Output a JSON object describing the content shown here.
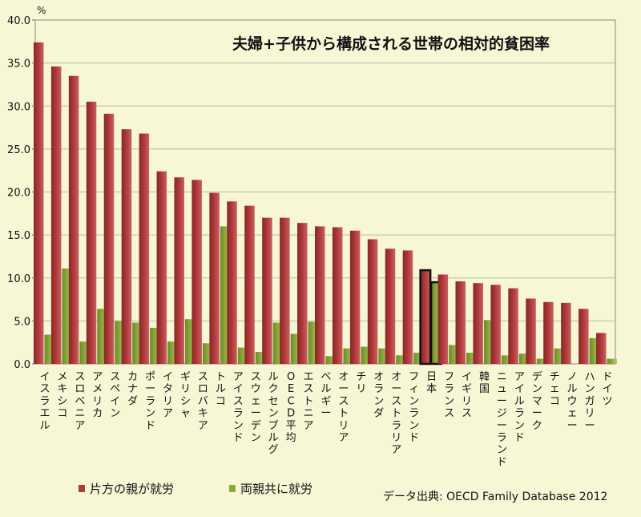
{
  "chart_data": {
    "type": "bar",
    "title": "夫婦+子供から構成される世帯の相対的貧困率",
    "ylabel": "%",
    "ylim": [
      0,
      40
    ],
    "yticks": [
      "0.0",
      "5.0",
      "10.0",
      "15.0",
      "20.0",
      "25.0",
      "30.0",
      "35.0",
      "40.0"
    ],
    "grid": true,
    "legend_position": "bottom-left",
    "highlight_category": "日本",
    "categories": [
      "イスラエル",
      "メキシコ",
      "スロベニア",
      "アメリカ",
      "スペイン",
      "カナダ",
      "ポーランド",
      "イタリア",
      "ギリシャ",
      "スロバキア",
      "トルコ",
      "アイスランド",
      "スウェーデン",
      "ルクセンブルグ",
      "OECD平均",
      "エストニア",
      "ベルギー",
      "オーストリア",
      "チリ",
      "オランダ",
      "オーストラリア",
      "フィンランド",
      "日本",
      "フランス",
      "イギリス",
      "韓国",
      "ニュージーランド",
      "アイルランド",
      "デンマーク",
      "チェコ",
      "ノルウェー",
      "ハンガリー",
      "ドイツ"
    ],
    "series": [
      {
        "name": "片方の親が就労",
        "color": "#b03a3a",
        "values": [
          37.4,
          34.6,
          33.5,
          30.5,
          29.1,
          27.3,
          26.8,
          22.4,
          21.7,
          21.4,
          19.9,
          18.9,
          18.4,
          17.0,
          17.0,
          16.4,
          16.0,
          15.9,
          15.5,
          14.5,
          13.4,
          13.2,
          10.9,
          10.4,
          9.6,
          9.4,
          9.2,
          8.8,
          7.6,
          7.2,
          7.1,
          6.4,
          3.6
        ]
      },
      {
        "name": "両親共に就労",
        "color": "#8caa3c",
        "values": [
          3.4,
          11.1,
          2.6,
          6.4,
          5.0,
          4.8,
          4.2,
          2.6,
          5.2,
          2.4,
          16.0,
          1.9,
          1.4,
          4.8,
          3.5,
          4.9,
          0.9,
          1.8,
          2.0,
          1.8,
          1.0,
          1.3,
          9.5,
          2.2,
          1.3,
          5.1,
          1.0,
          1.2,
          0.6,
          1.8,
          0.0,
          3.0,
          0.6
        ]
      }
    ]
  },
  "source": "データ出典: OECD Family Database 2012"
}
